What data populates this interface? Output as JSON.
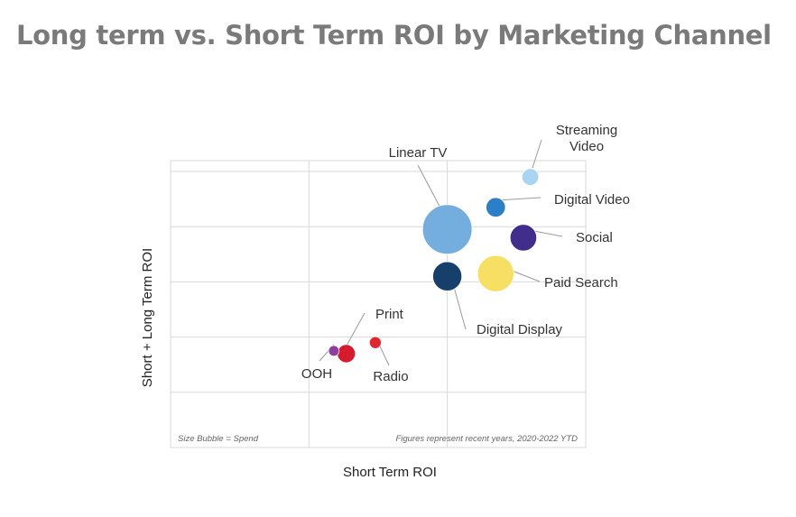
{
  "chart_data": {
    "type": "scatter",
    "title": "Long term vs. Short Term ROI by Marketing Channel",
    "xlabel": "Short Term ROI",
    "ylabel": "Short + Long Term ROI",
    "grid": true,
    "note_left": "Size Bubble = Spend",
    "note_right": "Figures represent recent years, 2020-2022 YTD",
    "points": [
      {
        "label": [
          "Streaming",
          "Video"
        ],
        "x": 2.6,
        "y": 4.9,
        "size": 0.3,
        "color": "#a9d4f2"
      },
      {
        "label": [
          "Digital Video"
        ],
        "x": 2.35,
        "y": 4.35,
        "size": 0.4,
        "color": "#2b7fc9"
      },
      {
        "label": [
          "Linear TV"
        ],
        "x": 2.0,
        "y": 3.95,
        "size": 2.6,
        "color": "#73aede"
      },
      {
        "label": [
          "Social"
        ],
        "x": 2.55,
        "y": 3.8,
        "size": 0.75,
        "color": "#412d8c"
      },
      {
        "label": [
          "Paid Search"
        ],
        "x": 2.35,
        "y": 3.15,
        "size": 1.4,
        "color": "#f6df62"
      },
      {
        "label": [
          "Digital Display"
        ],
        "x": 2.0,
        "y": 3.1,
        "size": 0.9,
        "color": "#173f6b"
      },
      {
        "label": [
          "Print"
        ],
        "x": 1.27,
        "y": 1.7,
        "size": 0.35,
        "color": "#d51b2c"
      },
      {
        "label": [
          "OOH"
        ],
        "x": 1.18,
        "y": 1.75,
        "size": 0.12,
        "color": "#8e3c9e"
      },
      {
        "label": [
          "Radio"
        ],
        "x": 1.48,
        "y": 1.9,
        "size": 0.15,
        "color": "#e3252e"
      }
    ]
  }
}
